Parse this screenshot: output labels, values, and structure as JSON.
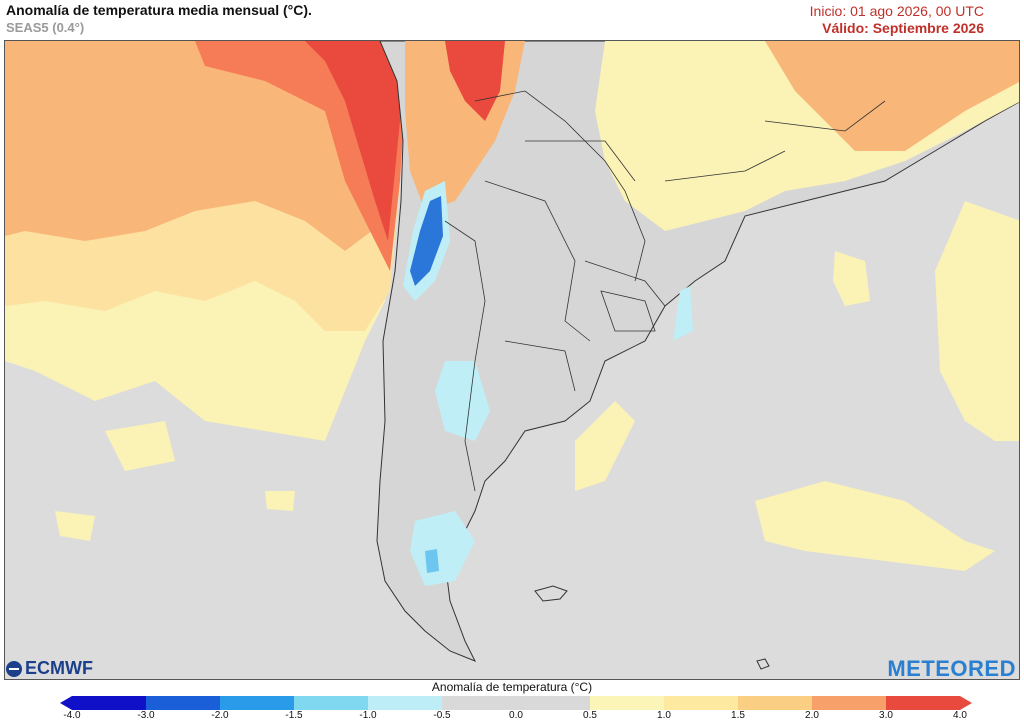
{
  "header": {
    "title": "Anomalía de temperatura media mensual (°C).",
    "subtitle": "SEAS5 (0.4°)",
    "init": "Inicio: 01 ago 2026, 00 UTC",
    "valid": "Válido: Septiembre 2026"
  },
  "logos": {
    "ecmwf": "ECMWF",
    "meteored": "METEORED"
  },
  "legend": {
    "title": "Anomalía de temperatura (°C)",
    "ticks": [
      "-4.0",
      "-3.0",
      "-2.0",
      "-1.5",
      "-1.0",
      "-0.5",
      "0.0",
      "0.5",
      "1.0",
      "1.5",
      "2.0",
      "3.0",
      "4.0"
    ],
    "colors": [
      "#1010c8",
      "#1a5fd8",
      "#2a9be8",
      "#7fd8f0",
      "#bdeef7",
      "#d9d9d9",
      "#d9d9d9",
      "#fbf5b8",
      "#fde9a0",
      "#fbcf83",
      "#f7a06a",
      "#e84a3e"
    ]
  },
  "colors": {
    "ocean_neutral": "#dcdcdc",
    "land_neutral": "#d6d6d6",
    "warm_light": "#fbf2b5",
    "warm_mid": "#fde1a0",
    "warm_orange": "#f9b679",
    "warm_strong": "#f57c57",
    "warm_red": "#e94a3d",
    "cold_light": "#bfeef7",
    "cold_mid": "#6cc6ef",
    "cold_dark": "#2a76d9",
    "border": "#333333"
  }
}
